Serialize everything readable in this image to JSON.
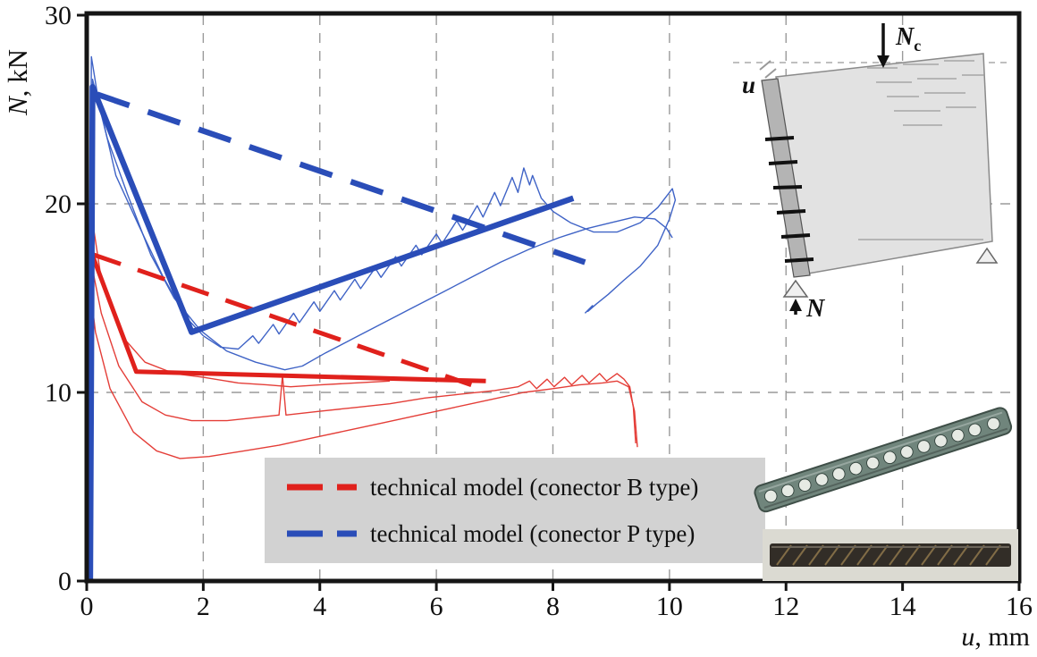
{
  "chart_data": {
    "type": "line",
    "title": "",
    "xlabel_var": "u",
    "xlabel_unit": ", mm",
    "ylabel_var": "N",
    "ylabel_unit": ", kN",
    "xlim": [
      0,
      16
    ],
    "ylim": [
      0,
      30
    ],
    "xticks": [
      0,
      2,
      4,
      6,
      8,
      10,
      12,
      14,
      16
    ],
    "yticks": [
      0,
      10,
      20,
      30
    ],
    "grid": {
      "x": [
        2,
        4,
        6,
        8,
        10,
        12,
        14
      ],
      "y": [
        10,
        20
      ],
      "style": "dashed",
      "color": "#9a9a9a"
    },
    "legend": {
      "position": "bottom-center-inside",
      "background": "#d2d2d2",
      "items": [
        {
          "label": "technical model (conector B type)",
          "color": "#e0211c"
        },
        {
          "label": "technical model (conector P type)",
          "color": "#2a4db8"
        }
      ]
    },
    "series": [
      {
        "id": "experiment-B-1",
        "role": "experiment",
        "color": "#e43e38",
        "width": 1.4,
        "dash": null,
        "points": [
          [
            0.03,
            0
          ],
          [
            0.05,
            17.3
          ],
          [
            0.25,
            14.2
          ],
          [
            0.55,
            11.4
          ],
          [
            0.95,
            9.5
          ],
          [
            1.35,
            8.8
          ],
          [
            1.8,
            8.5
          ],
          [
            2.4,
            8.5
          ],
          [
            3.0,
            8.7
          ],
          [
            3.3,
            8.8
          ],
          [
            3.36,
            10.9
          ],
          [
            3.42,
            8.8
          ],
          [
            4.0,
            9.0
          ],
          [
            4.6,
            9.2
          ],
          [
            5.2,
            9.4
          ],
          [
            5.8,
            9.7
          ],
          [
            6.4,
            9.9
          ],
          [
            7.0,
            10.1
          ],
          [
            7.4,
            10.3
          ],
          [
            7.6,
            10.6
          ],
          [
            7.72,
            10.2
          ],
          [
            7.9,
            10.7
          ],
          [
            8.02,
            10.3
          ],
          [
            8.2,
            10.8
          ],
          [
            8.32,
            10.4
          ],
          [
            8.5,
            10.9
          ],
          [
            8.62,
            10.5
          ],
          [
            8.8,
            11.0
          ],
          [
            8.92,
            10.6
          ],
          [
            9.1,
            11.0
          ],
          [
            9.22,
            10.7
          ],
          [
            9.32,
            10.3
          ],
          [
            9.38,
            9.2
          ],
          [
            9.42,
            7.3
          ]
        ]
      },
      {
        "id": "experiment-B-2",
        "role": "experiment",
        "color": "#e43e38",
        "width": 1.4,
        "dash": null,
        "points": [
          [
            0.03,
            0
          ],
          [
            0.04,
            16.0
          ],
          [
            0.15,
            13.2
          ],
          [
            0.4,
            10.2
          ],
          [
            0.8,
            7.9
          ],
          [
            1.2,
            6.9
          ],
          [
            1.6,
            6.5
          ],
          [
            2.1,
            6.6
          ],
          [
            2.7,
            6.9
          ],
          [
            3.3,
            7.2
          ],
          [
            3.9,
            7.6
          ],
          [
            4.5,
            8.0
          ],
          [
            5.1,
            8.4
          ],
          [
            5.7,
            8.8
          ],
          [
            6.3,
            9.2
          ],
          [
            6.9,
            9.6
          ],
          [
            7.5,
            10.0
          ],
          [
            8.0,
            10.2
          ],
          [
            8.45,
            10.4
          ],
          [
            8.85,
            10.5
          ],
          [
            9.1,
            10.6
          ],
          [
            9.3,
            10.3
          ],
          [
            9.4,
            9.0
          ],
          [
            9.45,
            7.1
          ]
        ]
      },
      {
        "id": "experiment-B-3",
        "role": "experiment",
        "color": "#e43e38",
        "width": 1.4,
        "dash": null,
        "points": [
          [
            0.03,
            0
          ],
          [
            0.06,
            19.9
          ],
          [
            0.25,
            16.0
          ],
          [
            0.6,
            13.0
          ],
          [
            1.0,
            11.6
          ],
          [
            1.5,
            11.0
          ],
          [
            2.0,
            10.8
          ],
          [
            2.6,
            10.5
          ],
          [
            3.1,
            10.4
          ],
          [
            3.5,
            10.3
          ],
          [
            4.0,
            10.4
          ],
          [
            4.6,
            10.5
          ],
          [
            5.2,
            10.6
          ]
        ]
      },
      {
        "id": "experiment-P-1",
        "role": "experiment",
        "color": "#3f63c6",
        "width": 1.4,
        "dash": null,
        "points": [
          [
            0.03,
            0
          ],
          [
            0.08,
            27.8
          ],
          [
            0.2,
            25.5
          ],
          [
            0.5,
            21.5
          ],
          [
            0.9,
            18.8
          ],
          [
            1.3,
            16.2
          ],
          [
            1.7,
            14.0
          ],
          [
            2.0,
            13.0
          ],
          [
            2.3,
            12.4
          ],
          [
            2.6,
            12.3
          ],
          [
            2.85,
            13.0
          ],
          [
            2.95,
            12.6
          ],
          [
            3.2,
            13.6
          ],
          [
            3.3,
            13.1
          ],
          [
            3.55,
            14.2
          ],
          [
            3.65,
            13.7
          ],
          [
            3.9,
            14.8
          ],
          [
            4.0,
            14.3
          ],
          [
            4.25,
            15.4
          ],
          [
            4.35,
            14.9
          ],
          [
            4.6,
            16.0
          ],
          [
            4.7,
            15.5
          ],
          [
            4.95,
            16.6
          ],
          [
            5.05,
            16.1
          ],
          [
            5.3,
            17.2
          ],
          [
            5.4,
            16.7
          ],
          [
            5.65,
            17.8
          ],
          [
            5.75,
            17.3
          ],
          [
            6.0,
            18.4
          ],
          [
            6.1,
            17.9
          ],
          [
            6.35,
            19.1
          ],
          [
            6.45,
            18.6
          ],
          [
            6.7,
            19.9
          ],
          [
            6.8,
            19.3
          ],
          [
            7.0,
            20.6
          ],
          [
            7.1,
            19.9
          ],
          [
            7.3,
            21.4
          ],
          [
            7.4,
            20.6
          ],
          [
            7.5,
            21.9
          ],
          [
            7.6,
            21.0
          ],
          [
            7.65,
            21.5
          ],
          [
            7.8,
            20.3
          ],
          [
            8.0,
            19.6
          ],
          [
            8.3,
            19.0
          ],
          [
            8.7,
            18.5
          ],
          [
            9.1,
            18.5
          ],
          [
            9.5,
            19.0
          ],
          [
            9.8,
            19.8
          ],
          [
            10.05,
            20.8
          ],
          [
            10.1,
            20.2
          ],
          [
            10.0,
            19.2
          ],
          [
            9.8,
            17.8
          ],
          [
            9.5,
            16.7
          ],
          [
            9.2,
            15.9
          ],
          [
            8.95,
            15.2
          ],
          [
            8.75,
            14.7
          ],
          [
            8.6,
            14.3
          ],
          [
            8.68,
            14.6
          ],
          [
            8.55,
            14.2
          ]
        ]
      },
      {
        "id": "experiment-P-2",
        "role": "experiment",
        "color": "#3f63c6",
        "width": 1.4,
        "dash": null,
        "points": [
          [
            0.03,
            0
          ],
          [
            0.1,
            26.6
          ],
          [
            0.35,
            23.5
          ],
          [
            0.7,
            20.5
          ],
          [
            1.1,
            17.3
          ],
          [
            1.5,
            15.0
          ],
          [
            1.95,
            13.3
          ],
          [
            2.4,
            12.2
          ],
          [
            2.9,
            11.6
          ],
          [
            3.4,
            11.2
          ],
          [
            3.7,
            11.4
          ],
          [
            4.1,
            12.1
          ],
          [
            4.6,
            12.9
          ],
          [
            5.1,
            13.7
          ],
          [
            5.6,
            14.5
          ],
          [
            6.1,
            15.3
          ],
          [
            6.6,
            16.1
          ],
          [
            7.1,
            16.9
          ],
          [
            7.6,
            17.6
          ],
          [
            8.1,
            18.2
          ],
          [
            8.6,
            18.7
          ],
          [
            9.0,
            19.0
          ],
          [
            9.4,
            19.3
          ],
          [
            9.75,
            19.2
          ],
          [
            9.95,
            18.7
          ],
          [
            10.05,
            18.2
          ]
        ]
      },
      {
        "id": "model-B-solid",
        "role": "technical-model",
        "color": "#e0211c",
        "width": 5,
        "dash": null,
        "points": [
          [
            0.04,
            0
          ],
          [
            0.07,
            17.5
          ],
          [
            0.85,
            11.1
          ],
          [
            6.85,
            10.6
          ]
        ]
      },
      {
        "id": "model-B-dashed",
        "role": "technical-model",
        "color": "#e0211c",
        "width": 5,
        "dash": [
          32,
          20
        ],
        "points": [
          [
            0.12,
            17.3
          ],
          [
            6.6,
            10.4
          ]
        ]
      },
      {
        "id": "model-P-solid",
        "role": "technical-model",
        "color": "#2a4db8",
        "width": 6.5,
        "dash": null,
        "points": [
          [
            0.06,
            0
          ],
          [
            0.1,
            26.2
          ],
          [
            1.8,
            13.2
          ],
          [
            8.35,
            20.3
          ]
        ]
      },
      {
        "id": "model-P-dashed",
        "role": "technical-model",
        "color": "#2a4db8",
        "width": 6.5,
        "dash": [
          38,
          22
        ],
        "points": [
          [
            0.18,
            25.8
          ],
          [
            8.55,
            16.9
          ]
        ]
      }
    ]
  },
  "inset": {
    "load_top_var": "N",
    "load_top_sub": "c",
    "displacement_label": "u",
    "load_bottom_var": "N"
  }
}
